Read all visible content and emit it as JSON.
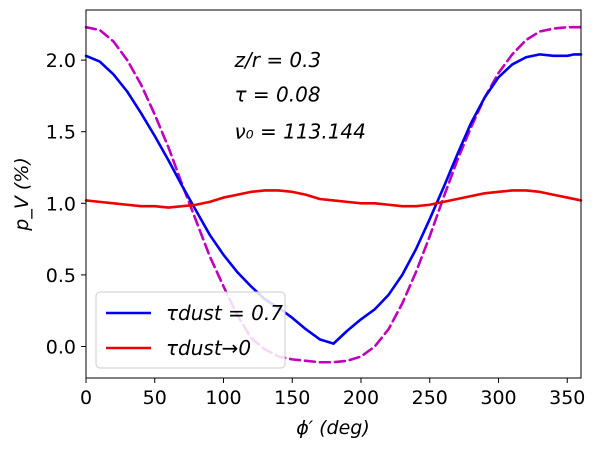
{
  "chart_data": {
    "type": "line",
    "title": "",
    "xlabel": "ϕ′ (deg)",
    "ylabel": "p_V (%)",
    "xlim": [
      0,
      360
    ],
    "ylim": [
      -0.22,
      2.35
    ],
    "xticks": [
      0,
      50,
      100,
      150,
      200,
      250,
      300,
      350
    ],
    "yticks": [
      0.0,
      0.5,
      1.0,
      1.5,
      2.0
    ],
    "xtick_labels": [
      "0",
      "50",
      "100",
      "150",
      "200",
      "250",
      "300",
      "350"
    ],
    "ytick_labels": [
      "0.0",
      "0.5",
      "1.0",
      "1.5",
      "2.0"
    ],
    "grid": false,
    "legend_position": "lower-left",
    "annotations": [
      {
        "text": "z/r = 0.3",
        "x": 108,
        "y": 2.0
      },
      {
        "text": "τ = 0.08",
        "x": 108,
        "y": 1.76
      },
      {
        "text": "ν₀ = 113.144",
        "x": 108,
        "y": 1.5
      }
    ],
    "series": [
      {
        "name": "τ_dust = 0.7",
        "legend_label": "τdust = 0.7",
        "color": "#0000ee",
        "style": "solid",
        "x": [
          0,
          10,
          20,
          30,
          40,
          50,
          60,
          70,
          80,
          90,
          100,
          110,
          120,
          130,
          140,
          150,
          160,
          170,
          180,
          190,
          200,
          210,
          220,
          230,
          240,
          250,
          260,
          270,
          280,
          290,
          300,
          310,
          320,
          330,
          340,
          350,
          355,
          360
        ],
        "y": [
          2.03,
          1.99,
          1.9,
          1.78,
          1.63,
          1.47,
          1.3,
          1.12,
          0.95,
          0.78,
          0.64,
          0.52,
          0.42,
          0.33,
          0.27,
          0.2,
          0.12,
          0.05,
          0.02,
          0.11,
          0.19,
          0.26,
          0.36,
          0.5,
          0.68,
          0.89,
          1.11,
          1.34,
          1.56,
          1.74,
          1.88,
          1.97,
          2.02,
          2.04,
          2.03,
          2.03,
          2.04,
          2.04
        ]
      },
      {
        "name": "τ_dust → 0",
        "legend_label": "τdust→0",
        "color": "#ee0000",
        "style": "solid",
        "x": [
          0,
          10,
          20,
          30,
          40,
          50,
          60,
          70,
          80,
          90,
          100,
          110,
          120,
          130,
          140,
          150,
          160,
          170,
          180,
          190,
          200,
          210,
          220,
          230,
          240,
          250,
          260,
          270,
          280,
          290,
          300,
          310,
          320,
          330,
          340,
          350,
          360
        ],
        "y": [
          1.02,
          1.01,
          1.0,
          0.99,
          0.98,
          0.98,
          0.97,
          0.98,
          0.99,
          1.01,
          1.04,
          1.06,
          1.08,
          1.09,
          1.09,
          1.08,
          1.06,
          1.03,
          1.02,
          1.01,
          1.0,
          1.0,
          0.99,
          0.98,
          0.98,
          0.99,
          1.01,
          1.03,
          1.05,
          1.07,
          1.08,
          1.09,
          1.09,
          1.08,
          1.06,
          1.04,
          1.02
        ]
      },
      {
        "name": "dashed curve",
        "color": "#c000c0",
        "style": "dashed",
        "x": [
          0,
          10,
          20,
          30,
          40,
          50,
          60,
          70,
          80,
          90,
          100,
          110,
          120,
          130,
          140,
          150,
          160,
          170,
          180,
          190,
          200,
          210,
          220,
          230,
          240,
          250,
          260,
          270,
          280,
          290,
          300,
          310,
          320,
          330,
          340,
          350,
          360
        ],
        "y": [
          2.23,
          2.21,
          2.13,
          2.0,
          1.83,
          1.62,
          1.39,
          1.13,
          0.88,
          0.63,
          0.42,
          0.22,
          0.06,
          -0.02,
          -0.07,
          -0.09,
          -0.1,
          -0.11,
          -0.11,
          -0.1,
          -0.07,
          0.0,
          0.12,
          0.3,
          0.52,
          0.77,
          1.04,
          1.3,
          1.53,
          1.74,
          1.91,
          2.04,
          2.14,
          2.2,
          2.22,
          2.23,
          2.23
        ]
      }
    ]
  }
}
